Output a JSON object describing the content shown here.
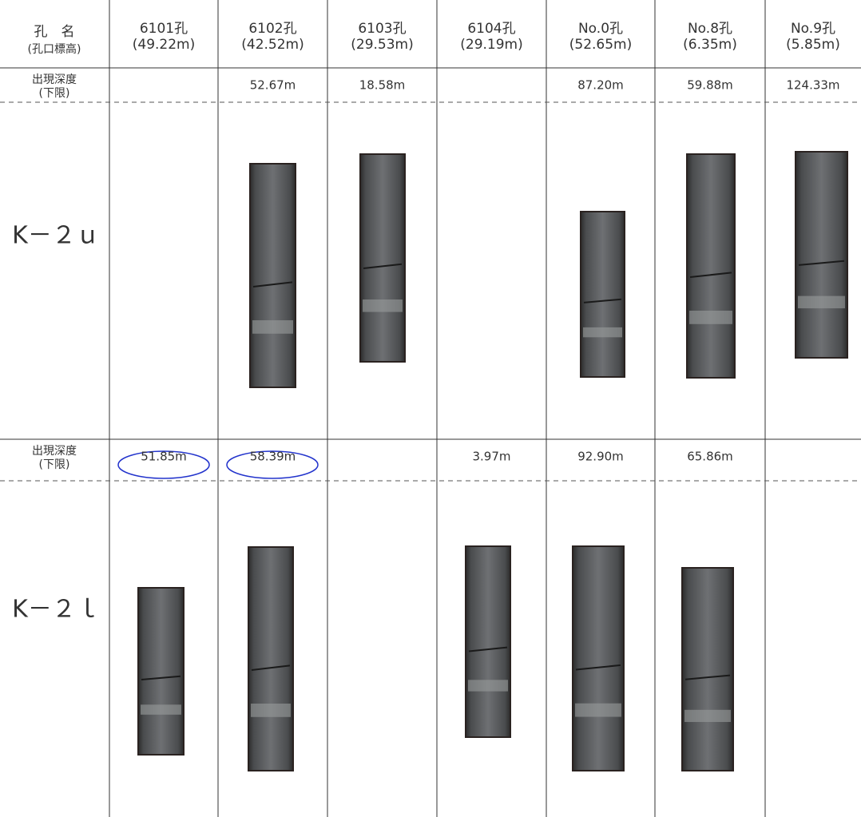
{
  "header": {
    "title": "孔　名",
    "subtitle": "(孔口標高)",
    "columns": [
      {
        "name": "6101孔",
        "elevation": "(49.22m)"
      },
      {
        "name": "6102孔",
        "elevation": "(42.52m)"
      },
      {
        "name": "6103孔",
        "elevation": "(29.53m)"
      },
      {
        "name": "6104孔",
        "elevation": "(29.19m)"
      },
      {
        "name": "No.0孔",
        "elevation": "(52.65m)"
      },
      {
        "name": "No.8孔",
        "elevation": "(6.35m)"
      },
      {
        "name": "No.9孔",
        "elevation": "(5.85m)"
      }
    ]
  },
  "rows": [
    {
      "depth_label": "出現深度",
      "depth_note": "(下限)",
      "label": "K－２ｕ",
      "depths": [
        null,
        "52.67m",
        "18.58m",
        null,
        "87.20m",
        "59.88m",
        "124.33m"
      ]
    },
    {
      "depth_label": "出現深度",
      "depth_note": "(下限)",
      "label": "K－２ｌ",
      "depths": [
        "51.85m",
        "58.39m",
        null,
        "3.97m",
        "92.90m",
        "65.86m",
        null
      ]
    }
  ]
}
